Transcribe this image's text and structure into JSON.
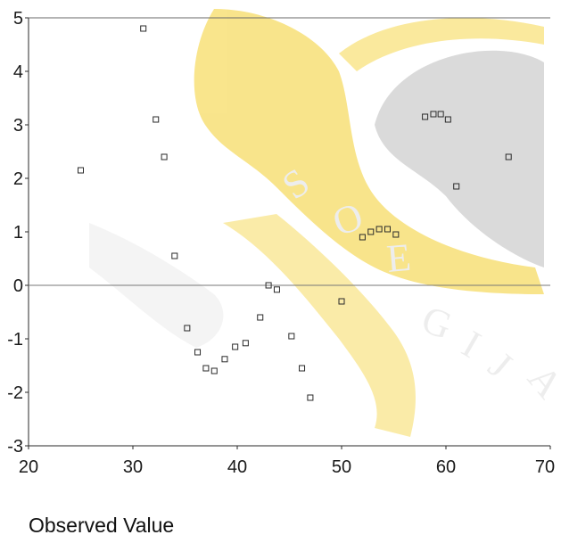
{
  "chart_data": {
    "type": "scatter",
    "xlabel": "Observed Value",
    "ylabel": "",
    "xlim": [
      20,
      70
    ],
    "ylim": [
      -3,
      5
    ],
    "xticks": [
      "20",
      "30",
      "40",
      "50",
      "60",
      "70"
    ],
    "yticks": [
      "5",
      "4",
      "3",
      "2",
      "1",
      "0",
      "-1",
      "-2",
      "-3"
    ],
    "reference_line_y": 0,
    "grid": false,
    "marker": "hollow-square",
    "points": [
      {
        "x": 25.0,
        "y": 2.15
      },
      {
        "x": 31.0,
        "y": 4.8
      },
      {
        "x": 32.2,
        "y": 3.1
      },
      {
        "x": 33.0,
        "y": 2.4
      },
      {
        "x": 34.0,
        "y": 0.55
      },
      {
        "x": 35.2,
        "y": -0.8
      },
      {
        "x": 36.2,
        "y": -1.25
      },
      {
        "x": 37.0,
        "y": -1.55
      },
      {
        "x": 37.8,
        "y": -1.6
      },
      {
        "x": 38.8,
        "y": -1.38
      },
      {
        "x": 39.8,
        "y": -1.15
      },
      {
        "x": 40.8,
        "y": -1.08
      },
      {
        "x": 42.2,
        "y": -0.6
      },
      {
        "x": 43.0,
        "y": 0.0
      },
      {
        "x": 43.8,
        "y": -0.08
      },
      {
        "x": 45.2,
        "y": -0.95
      },
      {
        "x": 46.2,
        "y": -1.55
      },
      {
        "x": 47.0,
        "y": -2.1
      },
      {
        "x": 50.0,
        "y": -0.3
      },
      {
        "x": 52.0,
        "y": 0.9
      },
      {
        "x": 52.8,
        "y": 1.0
      },
      {
        "x": 53.6,
        "y": 1.05
      },
      {
        "x": 54.4,
        "y": 1.05
      },
      {
        "x": 55.2,
        "y": 0.95
      },
      {
        "x": 58.0,
        "y": 3.15
      },
      {
        "x": 58.8,
        "y": 3.2
      },
      {
        "x": 59.5,
        "y": 3.2
      },
      {
        "x": 60.2,
        "y": 3.1
      },
      {
        "x": 61.0,
        "y": 1.85
      },
      {
        "x": 66.0,
        "y": 2.4
      }
    ]
  },
  "colors": {
    "background": "#ffffff",
    "axis": "#2a2a2a",
    "marker": "#2a2a2a",
    "text": "#1a1a1a",
    "watermark_fill": "#f7e07a",
    "watermark_dark": "#cfcfcf"
  },
  "watermark": {
    "description_hidden": true,
    "letters": [
      "S",
      "O",
      "E",
      "G",
      "I",
      "J",
      "A"
    ]
  }
}
